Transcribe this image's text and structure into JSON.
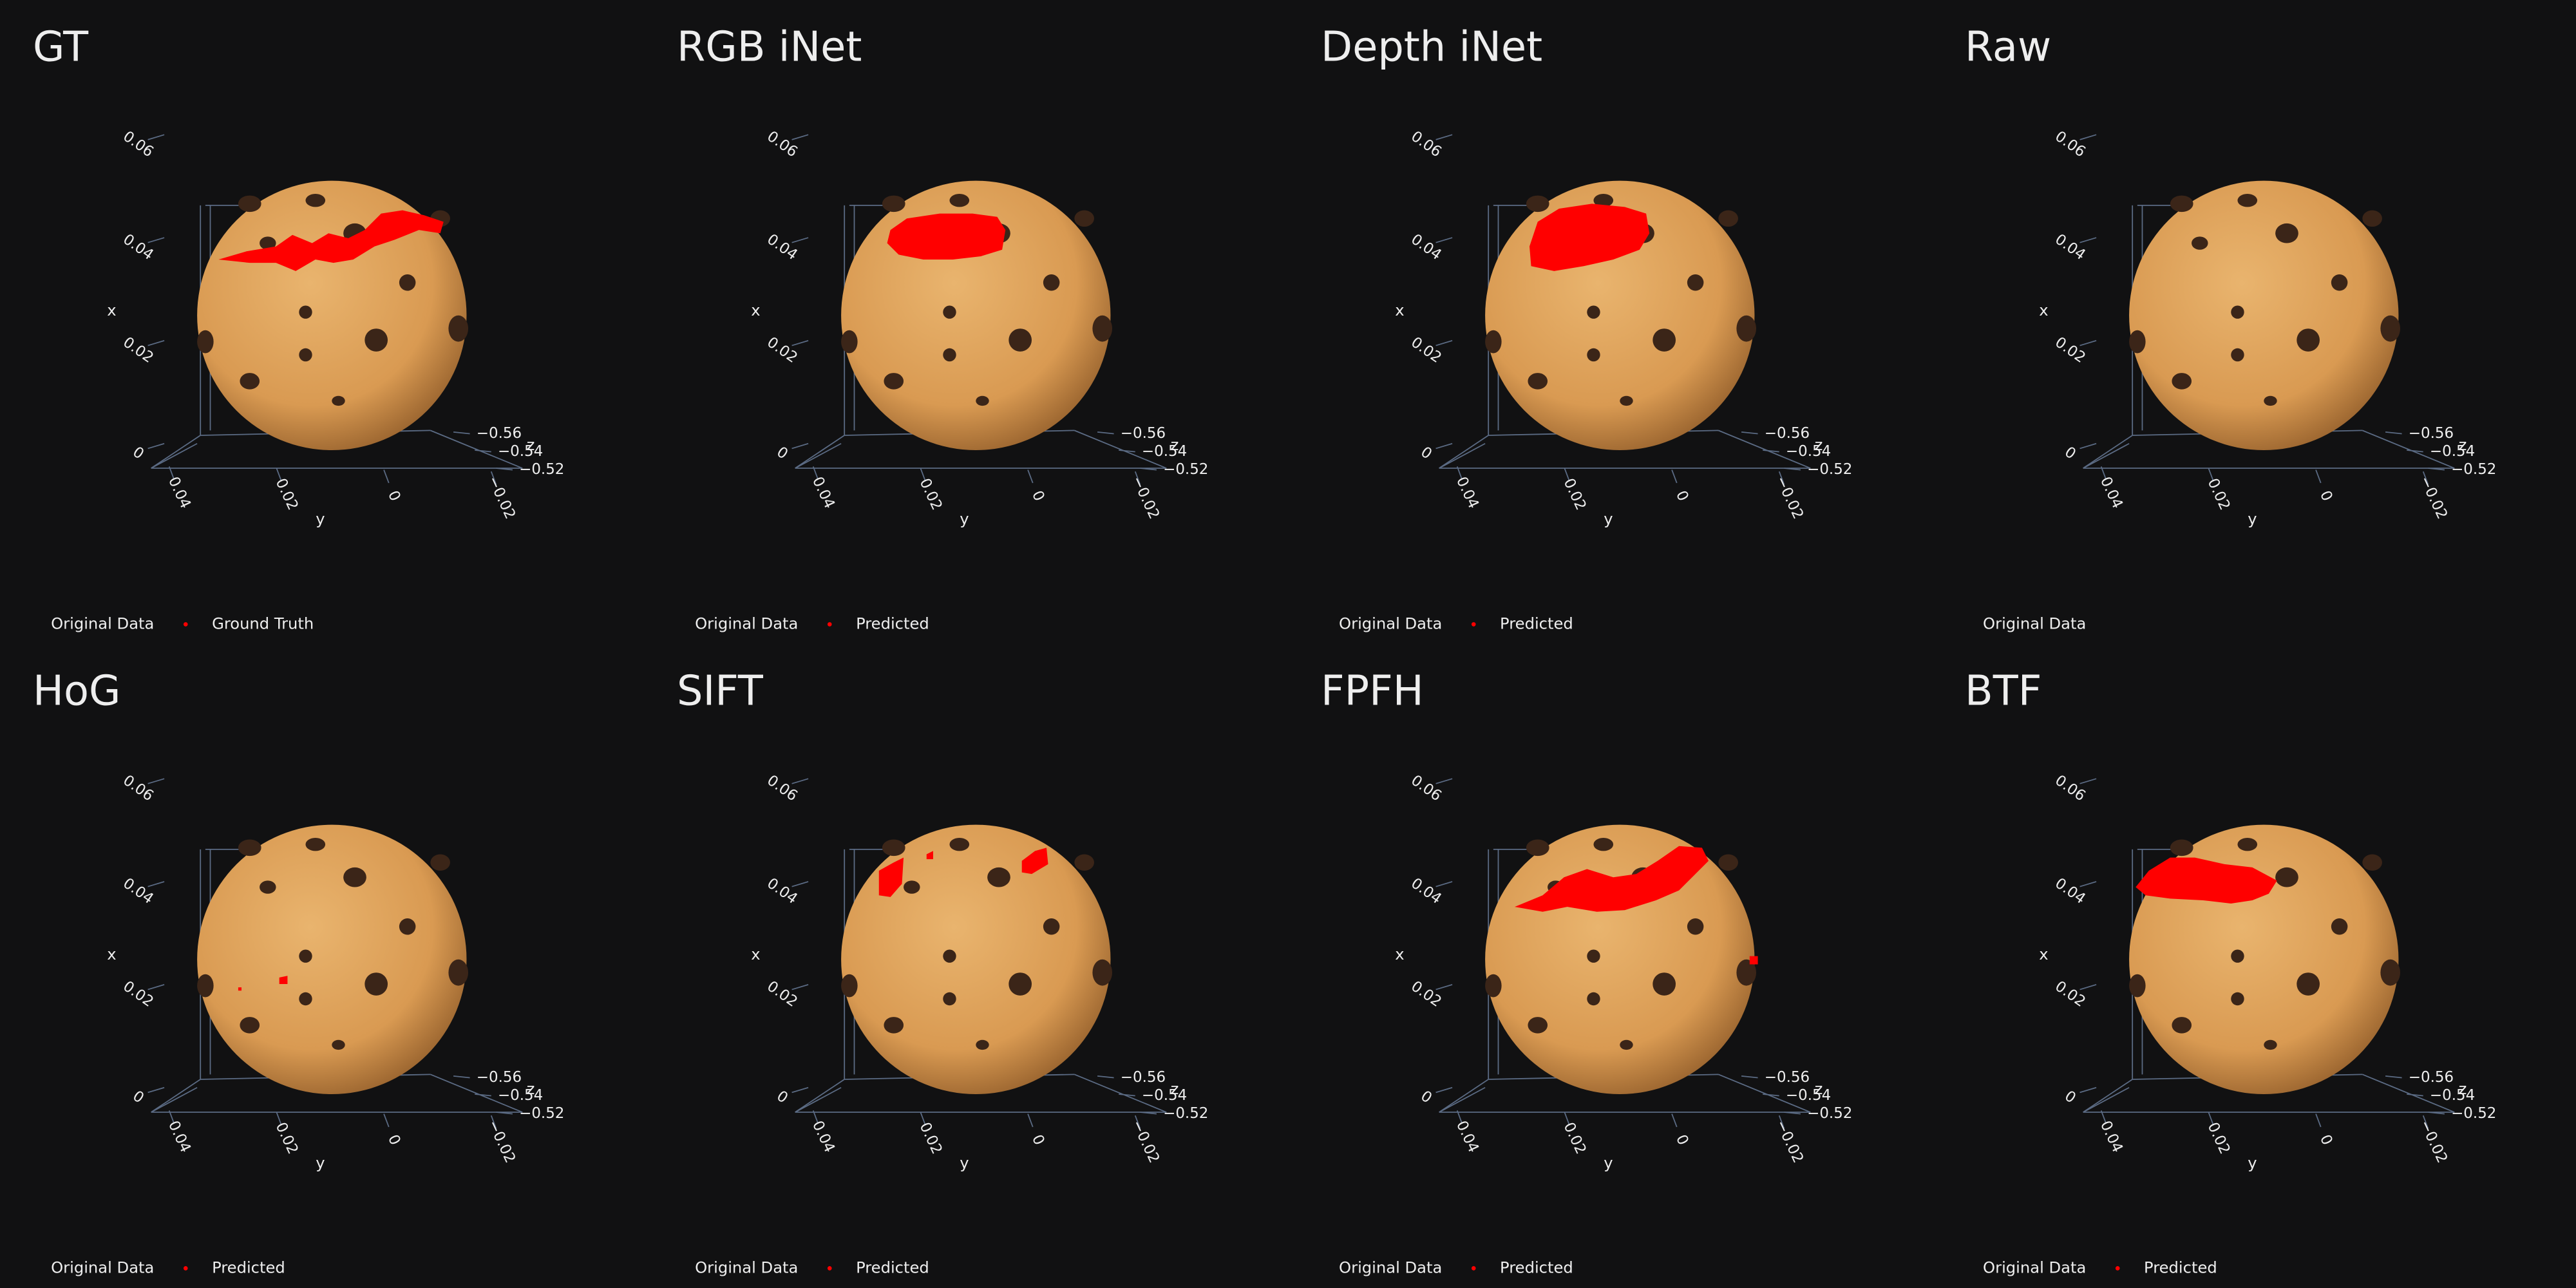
{
  "chart_data": [
    {
      "type": "scatter3d",
      "title": "GT",
      "xlabel": "x",
      "ylabel": "y",
      "zlabel": "z",
      "xlim": [
        0,
        0.06
      ],
      "xticks": [
        0,
        0.02,
        0.04,
        0.06
      ],
      "ylim": [
        -0.02,
        0.04
      ],
      "yticks": [
        {
          "value": -0.02,
          "label": "−0.02"
        },
        0,
        0.02,
        0.04
      ],
      "zlim": [
        -0.56,
        -0.52
      ],
      "zticks": [
        {
          "value": -0.56,
          "label": "−0.56"
        },
        {
          "value": -0.54,
          "label": "−0.54"
        },
        {
          "value": -0.52,
          "label": "−0.52"
        }
      ],
      "series": [
        {
          "name": "Original Data"
        },
        {
          "name": "Ground Truth",
          "color": "#ff0000"
        }
      ]
    },
    {
      "type": "scatter3d",
      "title": "RGB iNet",
      "xlabel": "x",
      "ylabel": "y",
      "zlabel": "z",
      "xlim": [
        0,
        0.06
      ],
      "xticks": [
        0,
        0.02,
        0.04,
        0.06
      ],
      "ylim": [
        -0.02,
        0.04
      ],
      "yticks": [
        {
          "value": -0.02,
          "label": "−0.02"
        },
        0,
        0.02,
        0.04
      ],
      "zlim": [
        -0.56,
        -0.52
      ],
      "zticks": [
        {
          "value": -0.56,
          "label": "−0.56"
        },
        {
          "value": -0.54,
          "label": "−0.54"
        },
        {
          "value": -0.52,
          "label": "−0.52"
        }
      ],
      "series": [
        {
          "name": "Original Data"
        },
        {
          "name": "Predicted",
          "color": "#ff0000"
        }
      ]
    },
    {
      "type": "scatter3d",
      "title": "Depth iNet",
      "xlabel": "x",
      "ylabel": "y",
      "zlabel": "z",
      "xlim": [
        0,
        0.06
      ],
      "xticks": [
        0,
        0.02,
        0.04,
        0.06
      ],
      "ylim": [
        -0.02,
        0.04
      ],
      "yticks": [
        {
          "value": -0.02,
          "label": "−0.02"
        },
        0,
        0.02,
        0.04
      ],
      "zlim": [
        -0.56,
        -0.52
      ],
      "zticks": [
        {
          "value": -0.56,
          "label": "−0.56"
        },
        {
          "value": -0.54,
          "label": "−0.54"
        },
        {
          "value": -0.52,
          "label": "−0.52"
        }
      ],
      "series": [
        {
          "name": "Original Data"
        },
        {
          "name": "Predicted",
          "color": "#ff0000"
        }
      ]
    },
    {
      "type": "scatter3d",
      "title": "Raw",
      "xlabel": "x",
      "ylabel": "y",
      "zlabel": "z",
      "xlim": [
        0,
        0.06
      ],
      "xticks": [
        0,
        0.02,
        0.04,
        0.06
      ],
      "ylim": [
        -0.02,
        0.04
      ],
      "yticks": [
        {
          "value": -0.02,
          "label": "−0.02"
        },
        0,
        0.02,
        0.04
      ],
      "zlim": [
        -0.56,
        -0.52
      ],
      "zticks": [
        {
          "value": -0.56,
          "label": "−0.56"
        },
        {
          "value": -0.54,
          "label": "−0.54"
        },
        {
          "value": -0.52,
          "label": "−0.52"
        }
      ],
      "series": [
        {
          "name": "Original Data"
        }
      ]
    },
    {
      "type": "scatter3d",
      "title": "HoG",
      "xlabel": "x",
      "ylabel": "y",
      "zlabel": "z",
      "xlim": [
        0,
        0.06
      ],
      "xticks": [
        0,
        0.02,
        0.04,
        0.06
      ],
      "ylim": [
        -0.02,
        0.04
      ],
      "yticks": [
        {
          "value": -0.02,
          "label": "−0.02"
        },
        0,
        0.02,
        0.04
      ],
      "zlim": [
        -0.56,
        -0.52
      ],
      "zticks": [
        {
          "value": -0.56,
          "label": "−0.56"
        },
        {
          "value": -0.54,
          "label": "−0.54"
        },
        {
          "value": -0.52,
          "label": "−0.52"
        }
      ],
      "series": [
        {
          "name": "Original Data"
        },
        {
          "name": "Predicted",
          "color": "#ff0000"
        }
      ]
    },
    {
      "type": "scatter3d",
      "title": "SIFT",
      "xlabel": "x",
      "ylabel": "y",
      "zlabel": "z",
      "xlim": [
        0,
        0.06
      ],
      "xticks": [
        0,
        0.02,
        0.04,
        0.06
      ],
      "ylim": [
        -0.02,
        0.04
      ],
      "yticks": [
        {
          "value": -0.02,
          "label": "−0.02"
        },
        0,
        0.02,
        0.04
      ],
      "zlim": [
        -0.56,
        -0.52
      ],
      "zticks": [
        {
          "value": -0.56,
          "label": "−0.56"
        },
        {
          "value": -0.54,
          "label": "−0.54"
        },
        {
          "value": -0.52,
          "label": "−0.52"
        }
      ],
      "series": [
        {
          "name": "Original Data"
        },
        {
          "name": "Predicted",
          "color": "#ff0000"
        }
      ]
    },
    {
      "type": "scatter3d",
      "title": "FPFH",
      "xlabel": "x",
      "ylabel": "y",
      "zlabel": "z",
      "xlim": [
        0,
        0.06
      ],
      "xticks": [
        0,
        0.02,
        0.04,
        0.06
      ],
      "ylim": [
        -0.02,
        0.04
      ],
      "yticks": [
        {
          "value": -0.02,
          "label": "−0.02"
        },
        0,
        0.02,
        0.04
      ],
      "zlim": [
        -0.56,
        -0.52
      ],
      "zticks": [
        {
          "value": -0.56,
          "label": "−0.56"
        },
        {
          "value": -0.54,
          "label": "−0.54"
        },
        {
          "value": -0.52,
          "label": "−0.52"
        }
      ],
      "series": [
        {
          "name": "Original Data"
        },
        {
          "name": "Predicted",
          "color": "#ff0000"
        }
      ]
    },
    {
      "type": "scatter3d",
      "title": "BTF",
      "xlabel": "x",
      "ylabel": "y",
      "zlabel": "z",
      "xlim": [
        0,
        0.06
      ],
      "xticks": [
        0,
        0.02,
        0.04,
        0.06
      ],
      "ylim": [
        -0.02,
        0.04
      ],
      "yticks": [
        {
          "value": -0.02,
          "label": "−0.02"
        },
        0,
        0.02,
        0.04
      ],
      "zlim": [
        -0.56,
        -0.52
      ],
      "zticks": [
        {
          "value": -0.56,
          "label": "−0.56"
        },
        {
          "value": -0.54,
          "label": "−0.54"
        },
        {
          "value": -0.52,
          "label": "−0.52"
        }
      ],
      "series": [
        {
          "name": "Original Data"
        },
        {
          "name": "Predicted",
          "color": "#ff0000"
        }
      ]
    }
  ]
}
